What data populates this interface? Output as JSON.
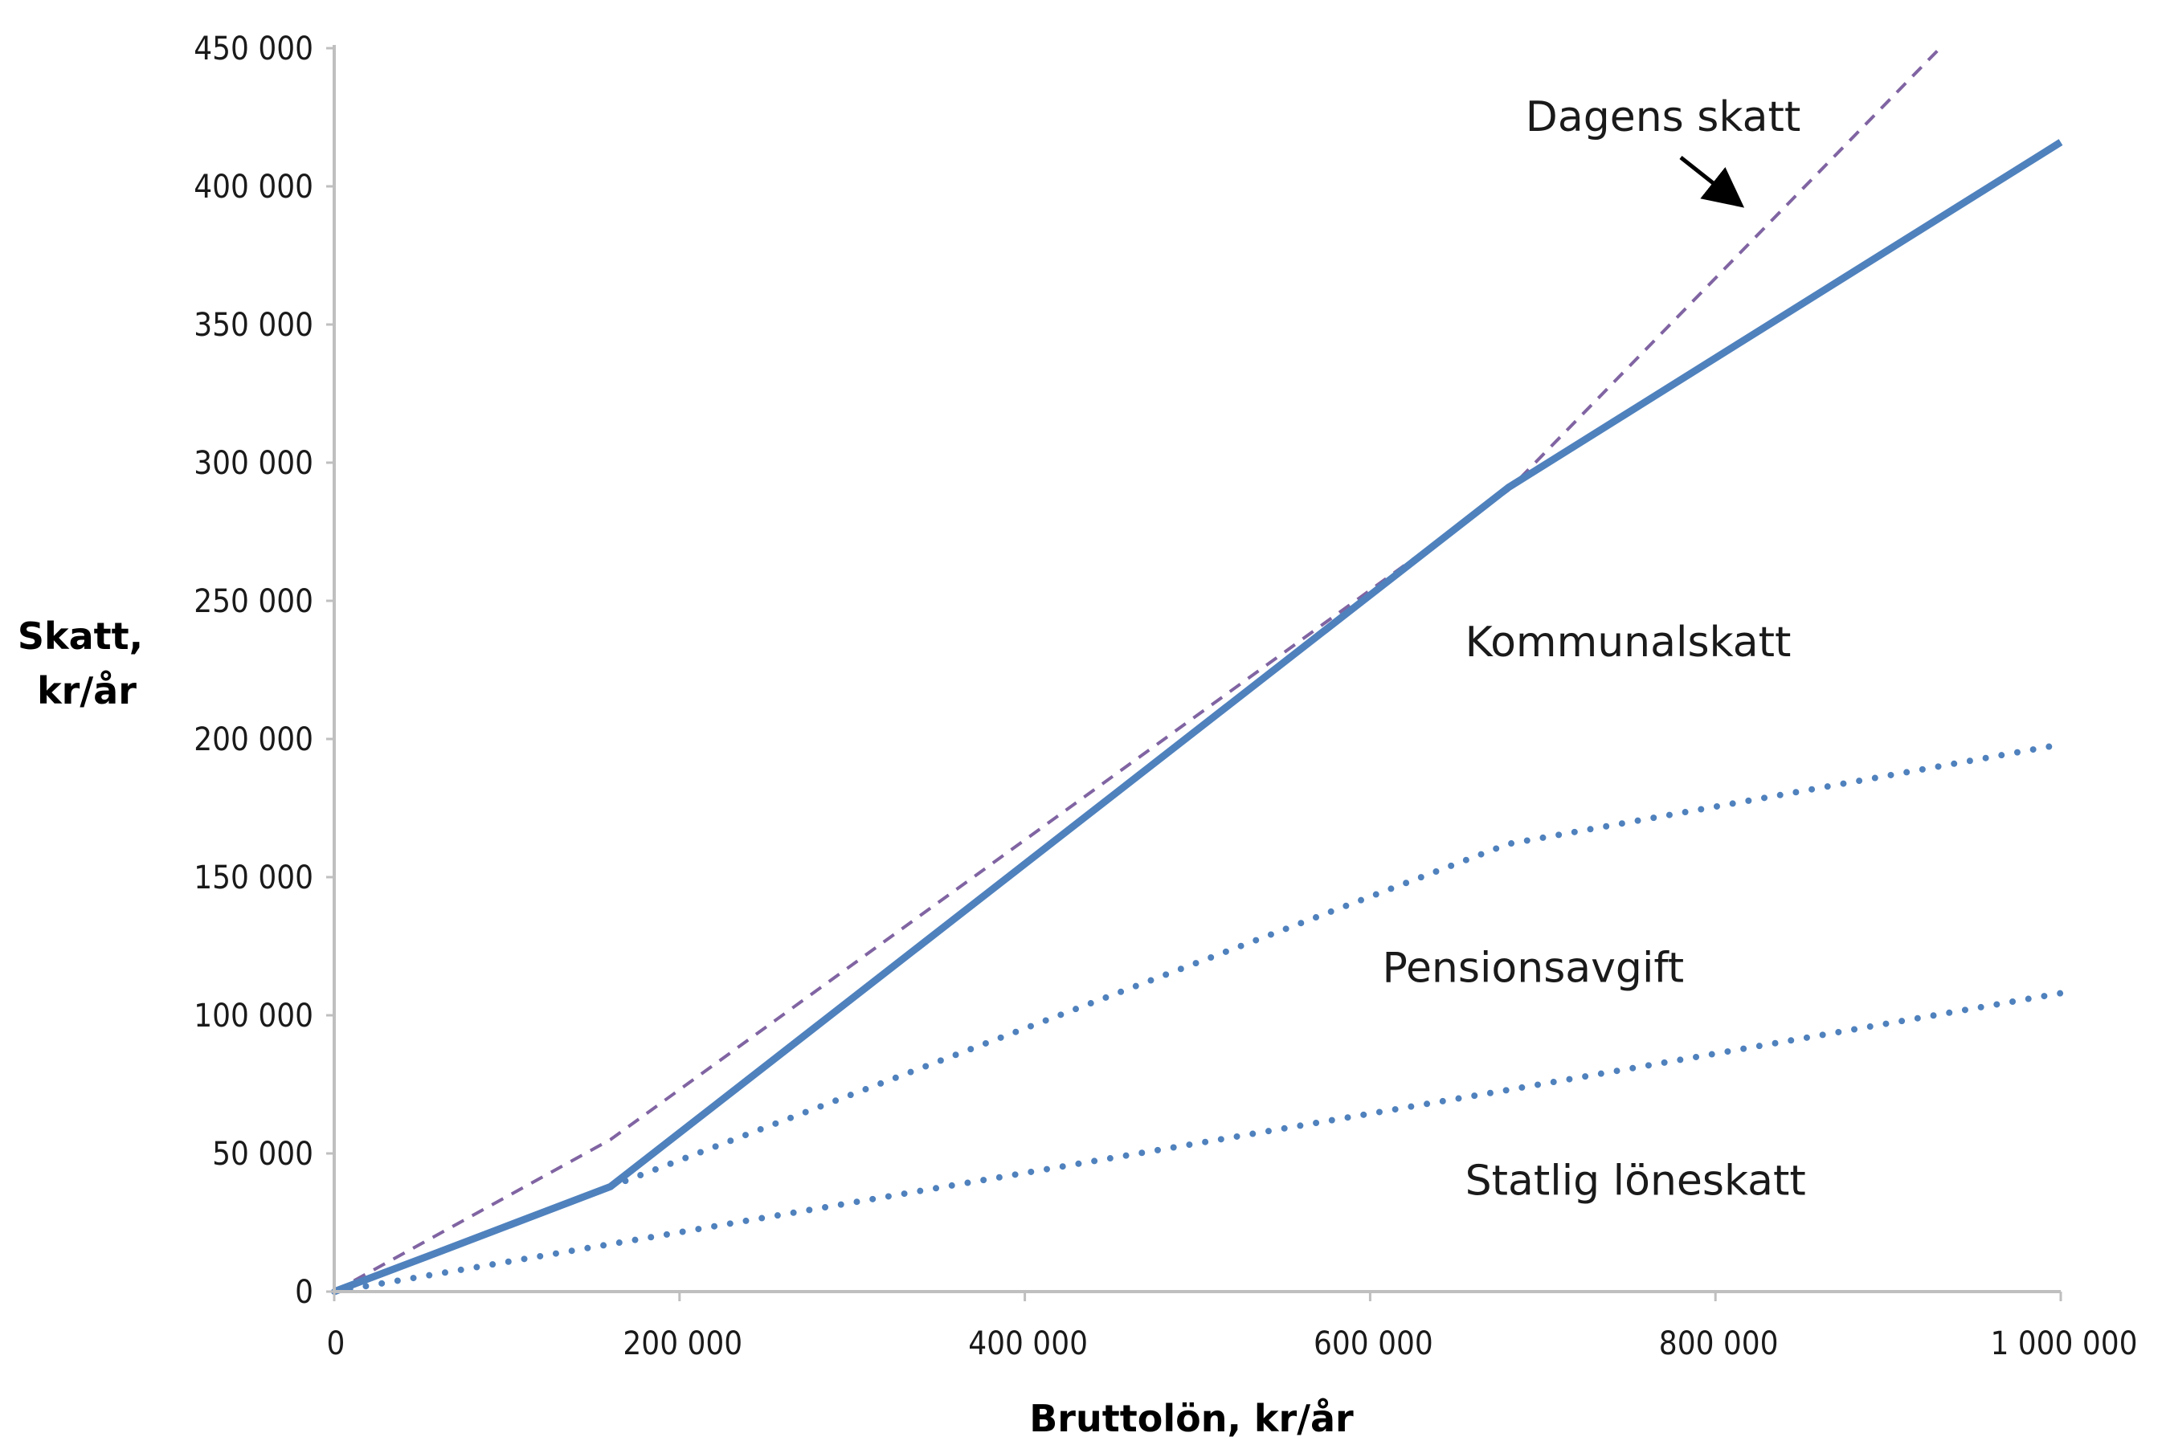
{
  "chart_data": {
    "type": "line",
    "xlabel": "Bruttolön, kr/år",
    "ylabel_lines": [
      "Skatt,",
      "kr/år"
    ],
    "xlim": [
      0,
      1000000
    ],
    "ylim": [
      0,
      450000
    ],
    "x_ticks": [
      0,
      200000,
      400000,
      600000,
      800000,
      1000000
    ],
    "x_tick_labels": [
      "0",
      "200 000",
      "400 000",
      "600 000",
      "800 000",
      "1 000 000"
    ],
    "y_ticks": [
      0,
      50000,
      100000,
      150000,
      200000,
      250000,
      300000,
      350000,
      400000,
      450000
    ],
    "y_tick_labels": [
      "0",
      "50 000",
      "100 000",
      "150 000",
      "200 000",
      "250 000",
      "300 000",
      "350 000",
      "400 000",
      "450 000"
    ],
    "grid": false,
    "legend": "none",
    "series": [
      {
        "style": "dashed",
        "color": "#8064a2",
        "points": [
          [
            0,
            0
          ],
          [
            160000,
            55000
          ],
          [
            680000,
            290000
          ],
          [
            930000,
            450000
          ]
        ]
      },
      {
        "style": "solid",
        "color": "#4f81bd",
        "points": [
          [
            0,
            0
          ],
          [
            55000,
            13000
          ],
          [
            160000,
            38000
          ],
          [
            680000,
            291000
          ],
          [
            1000000,
            416000
          ]
        ]
      },
      {
        "style": "dotted",
        "color": "#4f81bd",
        "points": [
          [
            160000,
            38000
          ],
          [
            680000,
            162000
          ],
          [
            1000000,
            198000
          ]
        ]
      },
      {
        "style": "dotted",
        "color": "#4f81bd",
        "points": [
          [
            0,
            0
          ],
          [
            680000,
            73000
          ],
          [
            1000000,
            108000
          ]
        ]
      }
    ],
    "annotations": [
      {
        "text": "Dagens skatt",
        "x": 690000,
        "y": 420000,
        "arrow_to": [
          827000,
          390000
        ]
      },
      {
        "text": "Kommunalskatt",
        "x": 655000,
        "y": 230000
      },
      {
        "text": "Pensionsavgift",
        "x": 607000,
        "y": 112000
      },
      {
        "text": "Statlig löneskatt",
        "x": 655000,
        "y": 35000
      }
    ]
  }
}
